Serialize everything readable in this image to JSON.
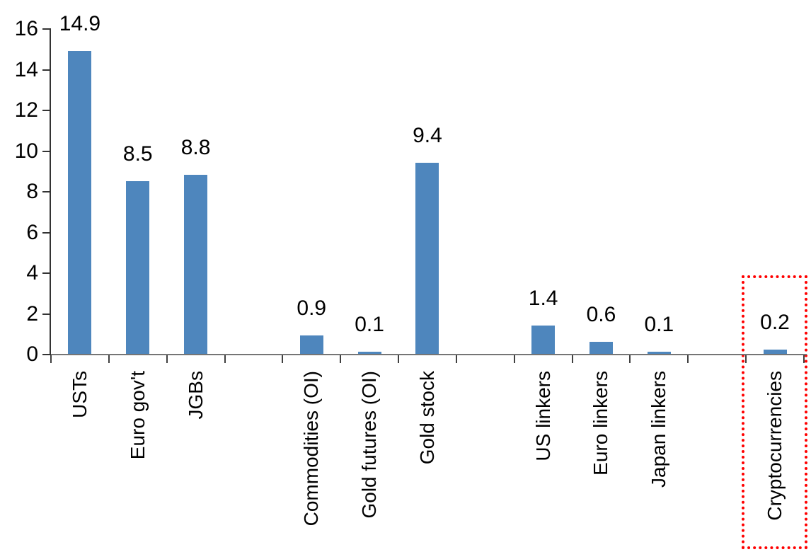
{
  "chart_data": {
    "type": "bar",
    "title": "",
    "xlabel": "",
    "ylabel": "",
    "categories": [
      "USTs",
      "Euro gov't",
      "JGBs",
      "",
      "Commodities (OI)",
      "Gold futures (OI)",
      "Gold stock",
      "",
      "US linkers",
      "Euro linkers",
      "Japan linkers",
      "",
      "Cryptocurrencies"
    ],
    "values": [
      14.9,
      8.5,
      8.8,
      null,
      0.9,
      0.1,
      9.4,
      null,
      1.4,
      0.6,
      0.1,
      null,
      0.2
    ],
    "bars": [
      {
        "slot": 0,
        "label": "USTs",
        "value": 14.9,
        "value_label": "14.9"
      },
      {
        "slot": 1,
        "label": "Euro gov't",
        "value": 8.5,
        "value_label": "8.5"
      },
      {
        "slot": 2,
        "label": "JGBs",
        "value": 8.8,
        "value_label": "8.8"
      },
      {
        "slot": 4,
        "label": "Commodities (OI)",
        "value": 0.9,
        "value_label": "0.9"
      },
      {
        "slot": 5,
        "label": "Gold futures (OI)",
        "value": 0.1,
        "value_label": "0.1"
      },
      {
        "slot": 6,
        "label": "Gold stock",
        "value": 9.4,
        "value_label": "9.4"
      },
      {
        "slot": 8,
        "label": "US linkers",
        "value": 1.4,
        "value_label": "1.4"
      },
      {
        "slot": 9,
        "label": "Euro linkers",
        "value": 0.6,
        "value_label": "0.6"
      },
      {
        "slot": 10,
        "label": "Japan linkers",
        "value": 0.1,
        "value_label": "0.1"
      },
      {
        "slot": 12,
        "label": "Cryptocurrencies",
        "value": 0.2,
        "value_label": "0.2",
        "highlighted": true
      }
    ],
    "ylim": [
      0,
      16
    ],
    "yticks": [
      "0",
      "2",
      "4",
      "6",
      "8",
      "10",
      "12",
      "14",
      "16"
    ],
    "grid": false,
    "legend": false,
    "bar_color": "#4E86BD",
    "y_axis_color": "#333333",
    "x_axis_color": "#757575",
    "x_tick_color": "#404040",
    "highlight": {
      "target": "Cryptocurrencies",
      "style": "dotted-box",
      "color": "#FF0000"
    }
  }
}
